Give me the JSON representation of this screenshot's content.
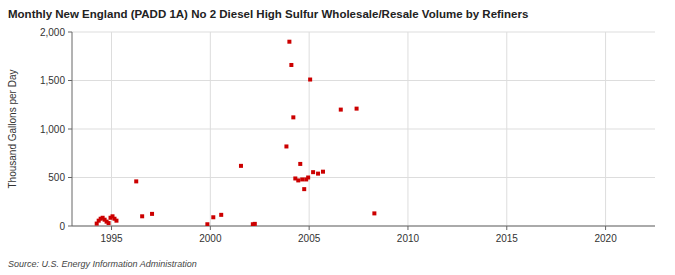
{
  "chart_data": {
    "type": "scatter",
    "title": "Monthly New England (PADD 1A) No 2 Diesel High Sulfur Wholesale/Resale Volume by Refiners",
    "y_label": "Thousand Gallons per Day",
    "source": "Source: U.S. Energy Information Administration",
    "color": "#cc0000",
    "marker": "square",
    "grid": true,
    "xlim": [
      1993.0,
      2022.5
    ],
    "ylim": [
      0,
      2000
    ],
    "xticks": [
      1995,
      2000,
      2005,
      2010,
      2015,
      2020
    ],
    "yticks": [
      0,
      500,
      {
        "value": 1000,
        "label": "1,000"
      },
      {
        "value": 1500,
        "label": "1,500"
      },
      {
        "value": 2000,
        "label": "2,000"
      }
    ],
    "x": [
      1994.25,
      1994.35,
      1994.45,
      1994.55,
      1994.65,
      1994.75,
      1994.85,
      1994.95,
      1995.05,
      1995.15,
      1995.25,
      1996.25,
      1996.55,
      1997.05,
      1999.85,
      2000.15,
      2000.55,
      2001.55,
      2002.15,
      2002.25,
      2003.85,
      2004.0,
      2004.1,
      2004.2,
      2004.3,
      2004.45,
      2004.55,
      2004.65,
      2004.75,
      2004.85,
      2004.95,
      2005.05,
      2005.2,
      2005.45,
      2005.7,
      2006.6,
      2007.4,
      2008.3
    ],
    "values": [
      25,
      55,
      75,
      85,
      65,
      45,
      30,
      85,
      100,
      75,
      55,
      460,
      100,
      125,
      18,
      90,
      115,
      620,
      18,
      22,
      820,
      1900,
      1660,
      1120,
      490,
      470,
      640,
      480,
      380,
      480,
      500,
      1510,
      555,
      540,
      560,
      1200,
      1210,
      130
    ]
  }
}
